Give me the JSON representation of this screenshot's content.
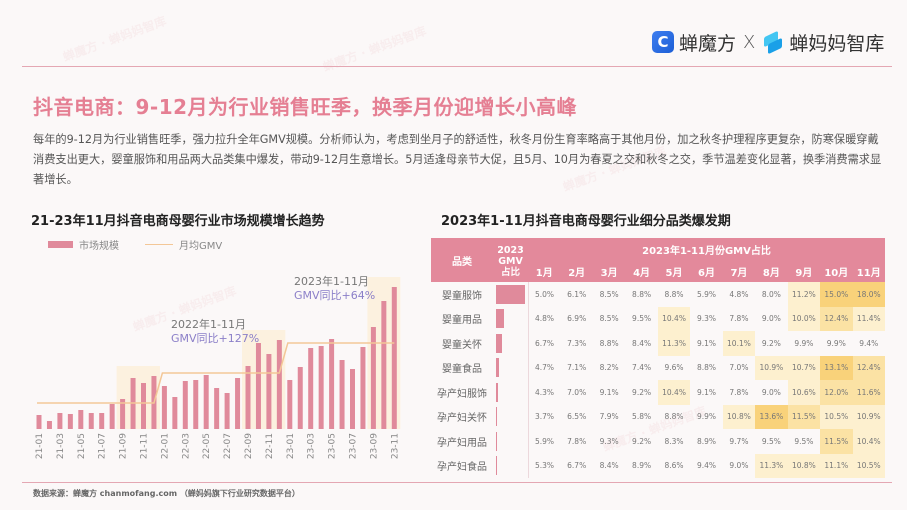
{
  "header": {
    "brand_left": "蝉魔方",
    "brand_separator": "X",
    "brand_right": "蝉妈妈智库"
  },
  "page_title": "抖音电商：9-12月为行业销售旺季，换季月份迎增长小高峰",
  "intro_text": "每年的9-12月为行业销售旺季，强力拉升全年GMV规模。分析师认为，考虑到坐月子的舒适性，秋冬月份生育率略高于其他月份，加之秋冬护理程序更复杂，防寒保暖穿戴消费支出更大，婴童服饰和用品两大品类集中爆发，带动9-12月生意增长。5月适逢母亲节大促，且5月、10月为春夏之交和秋冬之交，季节温差变化显著，换季消费需求显著增长。",
  "chart_data": {
    "type": "bar",
    "title": "21-23年11月抖音电商母婴行业市场规模增长趋势",
    "xlabel": "",
    "ylabel": "",
    "grid": false,
    "legend_position": "top-left",
    "legend": [
      {
        "name": "市场规模",
        "kind": "bar",
        "color": "#e08a9b"
      },
      {
        "name": "月均GMV",
        "kind": "line",
        "color": "#f3c797"
      }
    ],
    "categories": [
      "21-01",
      "21-02",
      "21-03",
      "21-04",
      "21-05",
      "21-06",
      "21-07",
      "21-08",
      "21-09",
      "21-10",
      "21-11",
      "21-12",
      "22-01",
      "22-02",
      "22-03",
      "22-04",
      "22-05",
      "22-06",
      "22-07",
      "22-08",
      "22-09",
      "22-10",
      "22-11",
      "22-12",
      "23-01",
      "23-02",
      "23-03",
      "23-04",
      "23-05",
      "23-06",
      "23-07",
      "23-08",
      "23-09",
      "23-10",
      "23-11"
    ],
    "tick_labels": [
      "21-01",
      "21-03",
      "21-05",
      "21-07",
      "21-09",
      "21-11",
      "22-01",
      "22-03",
      "22-05",
      "22-07",
      "22-09",
      "22-11",
      "23-01",
      "23-03",
      "23-05",
      "23-07",
      "23-09",
      "23-11"
    ],
    "series": [
      {
        "name": "市场规模",
        "type": "bar",
        "values": [
          14,
          8,
          16,
          15,
          19,
          16,
          16,
          25,
          30,
          51,
          46,
          53,
          43,
          32,
          48,
          49,
          54,
          41,
          36,
          51,
          63,
          86,
          75,
          89,
          49,
          62,
          81,
          83,
          90,
          69,
          60,
          82,
          102,
          128,
          142
        ]
      },
      {
        "name": "月均GMV",
        "type": "line",
        "values": [
          26,
          26,
          26,
          26,
          26,
          26,
          26,
          26,
          26,
          26,
          26,
          26,
          56,
          56,
          56,
          56,
          56,
          56,
          56,
          56,
          56,
          56,
          56,
          56,
          86,
          86,
          86,
          86,
          86,
          86,
          86,
          86,
          86,
          86,
          86
        ]
      }
    ],
    "ylim": [
      0,
      150
    ],
    "highlight_ranges": [
      [
        "21-09",
        "21-12"
      ],
      [
        "22-09",
        "22-12"
      ],
      [
        "23-09",
        "23-11"
      ]
    ],
    "annotations": [
      {
        "period": "2022年1-11月",
        "growth": "GMV同比+127%"
      },
      {
        "period": "2023年1-11月",
        "growth": "GMV同比+64%"
      }
    ],
    "value_units": "relative (unlabeled axis)"
  },
  "heatmap": {
    "title": "2023年1-11月抖音电商母婴行业细分品类爆发期",
    "header_category": "品类",
    "header_share": "2023 GMV 占比",
    "header_share_lines": [
      "2023",
      "GMV",
      "占比"
    ],
    "header_months_group": "2023年1-11月份GMV占比",
    "months": [
      "1月",
      "2月",
      "3月",
      "4月",
      "5月",
      "6月",
      "7月",
      "8月",
      "9月",
      "10月",
      "11月"
    ],
    "colors": {
      "header": "#e3899b",
      "share_bar": "#e08a9b",
      "hi1": "#fdf0cf",
      "hi2": "#fbe2a4",
      "hi3": "#f9d27a"
    },
    "rows": [
      {
        "category": "婴童服饰",
        "share_relative": 1.0,
        "values": [
          "5.0%",
          "6.1%",
          "8.5%",
          "8.8%",
          "8.8%",
          "5.9%",
          "4.8%",
          "8.0%",
          "11.2%",
          "15.0%",
          "18.0%"
        ]
      },
      {
        "category": "婴童用品",
        "share_relative": 0.27,
        "values": [
          "4.8%",
          "6.9%",
          "8.5%",
          "9.5%",
          "10.4%",
          "9.3%",
          "7.8%",
          "9.0%",
          "10.0%",
          "12.4%",
          "11.4%"
        ]
      },
      {
        "category": "婴童关怀",
        "share_relative": 0.2,
        "values": [
          "6.7%",
          "7.3%",
          "8.8%",
          "8.4%",
          "11.3%",
          "9.1%",
          "10.1%",
          "9.2%",
          "9.9%",
          "9.9%",
          "9.4%"
        ]
      },
      {
        "category": "婴童食品",
        "share_relative": 0.1,
        "values": [
          "4.7%",
          "7.1%",
          "8.2%",
          "7.4%",
          "9.6%",
          "8.8%",
          "7.0%",
          "10.9%",
          "10.7%",
          "13.1%",
          "12.4%"
        ]
      },
      {
        "category": "孕产妇服饰",
        "share_relative": 0.06,
        "values": [
          "4.3%",
          "7.0%",
          "9.1%",
          "9.2%",
          "10.4%",
          "9.1%",
          "7.8%",
          "9.0%",
          "10.6%",
          "12.0%",
          "11.6%"
        ]
      },
      {
        "category": "孕产妇关怀",
        "share_relative": 0.01,
        "values": [
          "3.7%",
          "6.5%",
          "7.9%",
          "5.8%",
          "8.8%",
          "9.9%",
          "10.8%",
          "13.6%",
          "11.5%",
          "10.5%",
          "10.9%"
        ]
      },
      {
        "category": "孕产妇用品",
        "share_relative": 0.01,
        "values": [
          "5.9%",
          "7.8%",
          "9.3%",
          "9.2%",
          "8.3%",
          "8.9%",
          "9.7%",
          "9.5%",
          "9.5%",
          "11.5%",
          "10.4%"
        ]
      },
      {
        "category": "孕产妇食品",
        "share_relative": 0.01,
        "values": [
          "5.3%",
          "6.7%",
          "8.4%",
          "8.9%",
          "8.6%",
          "9.4%",
          "9.0%",
          "11.3%",
          "10.8%",
          "11.1%",
          "10.5%"
        ]
      }
    ]
  },
  "footer": {
    "source": "数据来源：蝉魔方 chanmofang.com （蝉妈妈旗下行业研究数据平台）"
  }
}
